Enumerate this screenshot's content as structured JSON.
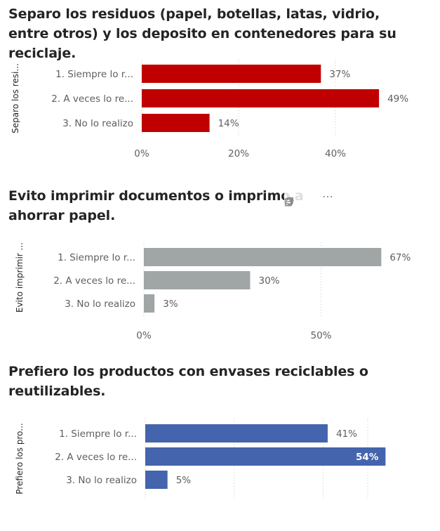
{
  "charts": [
    {
      "title": "Separo los residuos (papel, botellas, latas, vidrio, entre otros) y los deposito en contenedores para su reciclaje.",
      "ylabel": "Separo los resi...",
      "color": "#c00000",
      "ticks": [
        "0%",
        "20%",
        "40%"
      ],
      "data_labels": [
        "37%",
        "49%",
        "14%"
      ],
      "categories": [
        "1. Siempre lo r...",
        "2. A veces lo re...",
        "3. No lo realizo"
      ]
    },
    {
      "title": "Evito imprimir documentos o imprimo a doble cara para ahorrar papel.",
      "title_visible": "Evito imprimir documentos o imprimo a",
      "title_line2": "ahorrar papel.",
      "ylabel": "Evito imprimir ...",
      "color": "#a0a5a5",
      "ticks": [
        "0%",
        "50%"
      ],
      "data_labels": [
        "67%",
        "30%",
        "3%"
      ],
      "categories": [
        "1. Siempre lo r...",
        "2. A veces lo re...",
        "3. No lo realizo"
      ]
    },
    {
      "title": "Prefiero los productos con envases reciclables o reutilizables.",
      "ylabel": "Prefiero los pro...",
      "color": "#4464ad",
      "ticks": [],
      "data_labels": [
        "41%",
        "54%",
        "5%"
      ],
      "categories": [
        "1. Siempre lo r...",
        "2. A veces lo re...",
        "3. No lo realizo"
      ]
    }
  ],
  "toolbar": {
    "icons": [
      "pin-icon",
      "copy-icon",
      "alert-icon",
      "filter-icon",
      "focus-mode-icon",
      "more-options-icon"
    ],
    "more": "⋯"
  },
  "chart_data": [
    {
      "type": "bar",
      "orientation": "horizontal",
      "title": "Separo los residuos (papel, botellas, latas, vidrio, entre otros) y los deposito en contenedores para su reciclaje.",
      "ylabel": "Separo los resi...",
      "categories": [
        "1. Siempre lo r...",
        "2. A veces lo re...",
        "3. No lo realizo"
      ],
      "values": [
        0.37,
        0.49,
        0.14
      ],
      "xlim": [
        0,
        0.5
      ],
      "grid": true
    },
    {
      "type": "bar",
      "orientation": "horizontal",
      "title": "Evito imprimir documentos o imprimo a ... ahorrar papel.",
      "ylabel": "Evito imprimir ...",
      "categories": [
        "1. Siempre lo r...",
        "2. A veces lo re...",
        "3. No lo realizo"
      ],
      "values": [
        0.67,
        0.3,
        0.03
      ],
      "xlim": [
        0,
        0.67
      ],
      "grid": true
    },
    {
      "type": "bar",
      "orientation": "horizontal",
      "title": "Prefiero los productos con envases reciclables o reutilizables.",
      "ylabel": "Prefiero los pro...",
      "categories": [
        "1. Siempre lo r...",
        "2. A veces lo re...",
        "3. No lo realizo"
      ],
      "values": [
        0.41,
        0.54,
        0.05
      ],
      "xlim": [
        0,
        0.54
      ],
      "grid": true
    }
  ]
}
